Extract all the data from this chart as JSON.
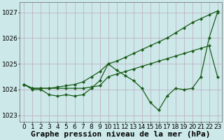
{
  "xlabel": "Graphe pression niveau de la mer (hPa)",
  "x": [
    0,
    1,
    2,
    3,
    4,
    5,
    6,
    7,
    8,
    9,
    10,
    11,
    12,
    13,
    14,
    15,
    16,
    17,
    18,
    19,
    20,
    21,
    22,
    23
  ],
  "series1": [
    1024.2,
    1024.0,
    1024.0,
    1023.8,
    1023.75,
    1023.8,
    1023.75,
    1023.8,
    1024.05,
    1024.35,
    1025.0,
    1024.75,
    1024.55,
    1024.35,
    1024.05,
    1023.5,
    1023.2,
    1023.75,
    1024.05,
    1024.0,
    1024.05,
    1024.5,
    1026.0,
    1027.0
  ],
  "series2": [
    1024.2,
    1024.05,
    1024.05,
    1024.05,
    1024.1,
    1024.15,
    1024.2,
    1024.3,
    1024.5,
    1024.7,
    1025.0,
    1025.1,
    1025.25,
    1025.4,
    1025.55,
    1025.7,
    1025.85,
    1026.0,
    1026.2,
    1026.4,
    1026.6,
    1026.75,
    1026.9,
    1027.05
  ],
  "series3": [
    1024.2,
    1024.05,
    1024.05,
    1024.05,
    1024.05,
    1024.05,
    1024.05,
    1024.05,
    1024.1,
    1024.15,
    1024.5,
    1024.6,
    1024.7,
    1024.8,
    1024.9,
    1025.0,
    1025.1,
    1025.2,
    1025.3,
    1025.4,
    1025.5,
    1025.6,
    1025.7,
    1024.5
  ],
  "bg_color": "#cce8e8",
  "grid_color": "#c0a8c0",
  "line_color": "#1a5c1a",
  "ylim": [
    1022.75,
    1027.4
  ],
  "yticks": [
    1023,
    1024,
    1025,
    1026,
    1027
  ],
  "xticks": [
    0,
    1,
    2,
    3,
    4,
    5,
    6,
    7,
    8,
    9,
    10,
    11,
    12,
    13,
    14,
    15,
    16,
    17,
    18,
    19,
    20,
    21,
    22,
    23
  ],
  "xlabel_fontsize": 8,
  "tick_fontsize": 6.5,
  "markersize": 2.2,
  "linewidth": 0.9
}
